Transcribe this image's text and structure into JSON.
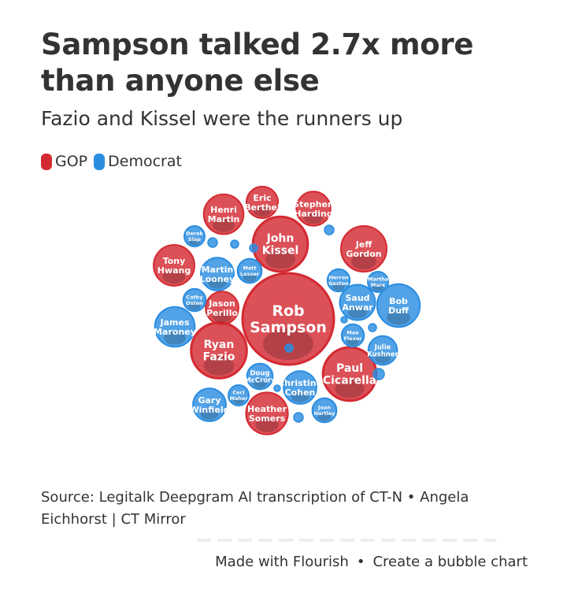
{
  "header": {
    "title": "Sampson talked 2.7x more than anyone else",
    "subtitle": "Fazio and Kissel were the runners up"
  },
  "legend": [
    {
      "label": "GOP",
      "color": "#d42a32"
    },
    {
      "label": "Democrat",
      "color": "#2b8de0"
    }
  ],
  "chart_data": {
    "type": "bubble",
    "title": "Sampson talked 2.7x more than anyone else",
    "subtitle": "Fazio and Kissel were the runners up",
    "colors": {
      "GOP": "#d42a32",
      "Democrat": "#2b8de0"
    },
    "bubbles": [
      {
        "name": "Rob Sampson",
        "party": "GOP",
        "value": 100
      },
      {
        "name": "Ryan Fazio",
        "party": "GOP",
        "value": 37
      },
      {
        "name": "John Kissel",
        "party": "GOP",
        "value": 36
      },
      {
        "name": "Paul Cicarella",
        "party": "GOP",
        "value": 34
      },
      {
        "name": "Jeff Gordon",
        "party": "GOP",
        "value": 25
      },
      {
        "name": "Heather Somers",
        "party": "GOP",
        "value": 21
      },
      {
        "name": "Tony Hwang",
        "party": "GOP",
        "value": 20
      },
      {
        "name": "Henri Martin",
        "party": "GOP",
        "value": 19
      },
      {
        "name": "Stephen Harding",
        "party": "GOP",
        "value": 14
      },
      {
        "name": "Jason Perillo",
        "party": "GOP",
        "value": 13
      },
      {
        "name": "Eric Berthel",
        "party": "GOP",
        "value": 12
      },
      {
        "name": "Bob Duff",
        "party": "Democrat",
        "value": 22
      },
      {
        "name": "James Maroney",
        "party": "Democrat",
        "value": 19
      },
      {
        "name": "Saud Anwar",
        "party": "Democrat",
        "value": 15
      },
      {
        "name": "Christine Cohen",
        "party": "Democrat",
        "value": 13
      },
      {
        "name": "Martin Looney",
        "party": "Democrat",
        "value": 13
      },
      {
        "name": "Gary Winfield",
        "party": "Democrat",
        "value": 13
      },
      {
        "name": "Julie Kushner",
        "party": "Democrat",
        "value": 10
      },
      {
        "name": "Doug McCrory",
        "party": "Democrat",
        "value": 8
      },
      {
        "name": "Matt Lesser",
        "party": "Democrat",
        "value": 7
      },
      {
        "name": "Joan Hartley",
        "party": "Democrat",
        "value": 7
      },
      {
        "name": "Cathy Osten",
        "party": "Democrat",
        "value": 6
      },
      {
        "name": "Mae Flexer",
        "party": "Democrat",
        "value": 6
      },
      {
        "name": "Herron Gaston",
        "party": "Democrat",
        "value": 6
      },
      {
        "name": "Martha Marx",
        "party": "Democrat",
        "value": 5
      },
      {
        "name": "Derek Slap",
        "party": "Democrat",
        "value": 5
      },
      {
        "name": "Ceci Maher",
        "party": "Democrat",
        "value": 5
      }
    ]
  },
  "footer": {
    "source": "Source: Legitalk Deepgram AI transcription of CT-N • Angela Eichhorst | CT Mirror",
    "made_with": "Made with Flourish",
    "separator": "•",
    "create_link": "Create a bubble chart"
  }
}
